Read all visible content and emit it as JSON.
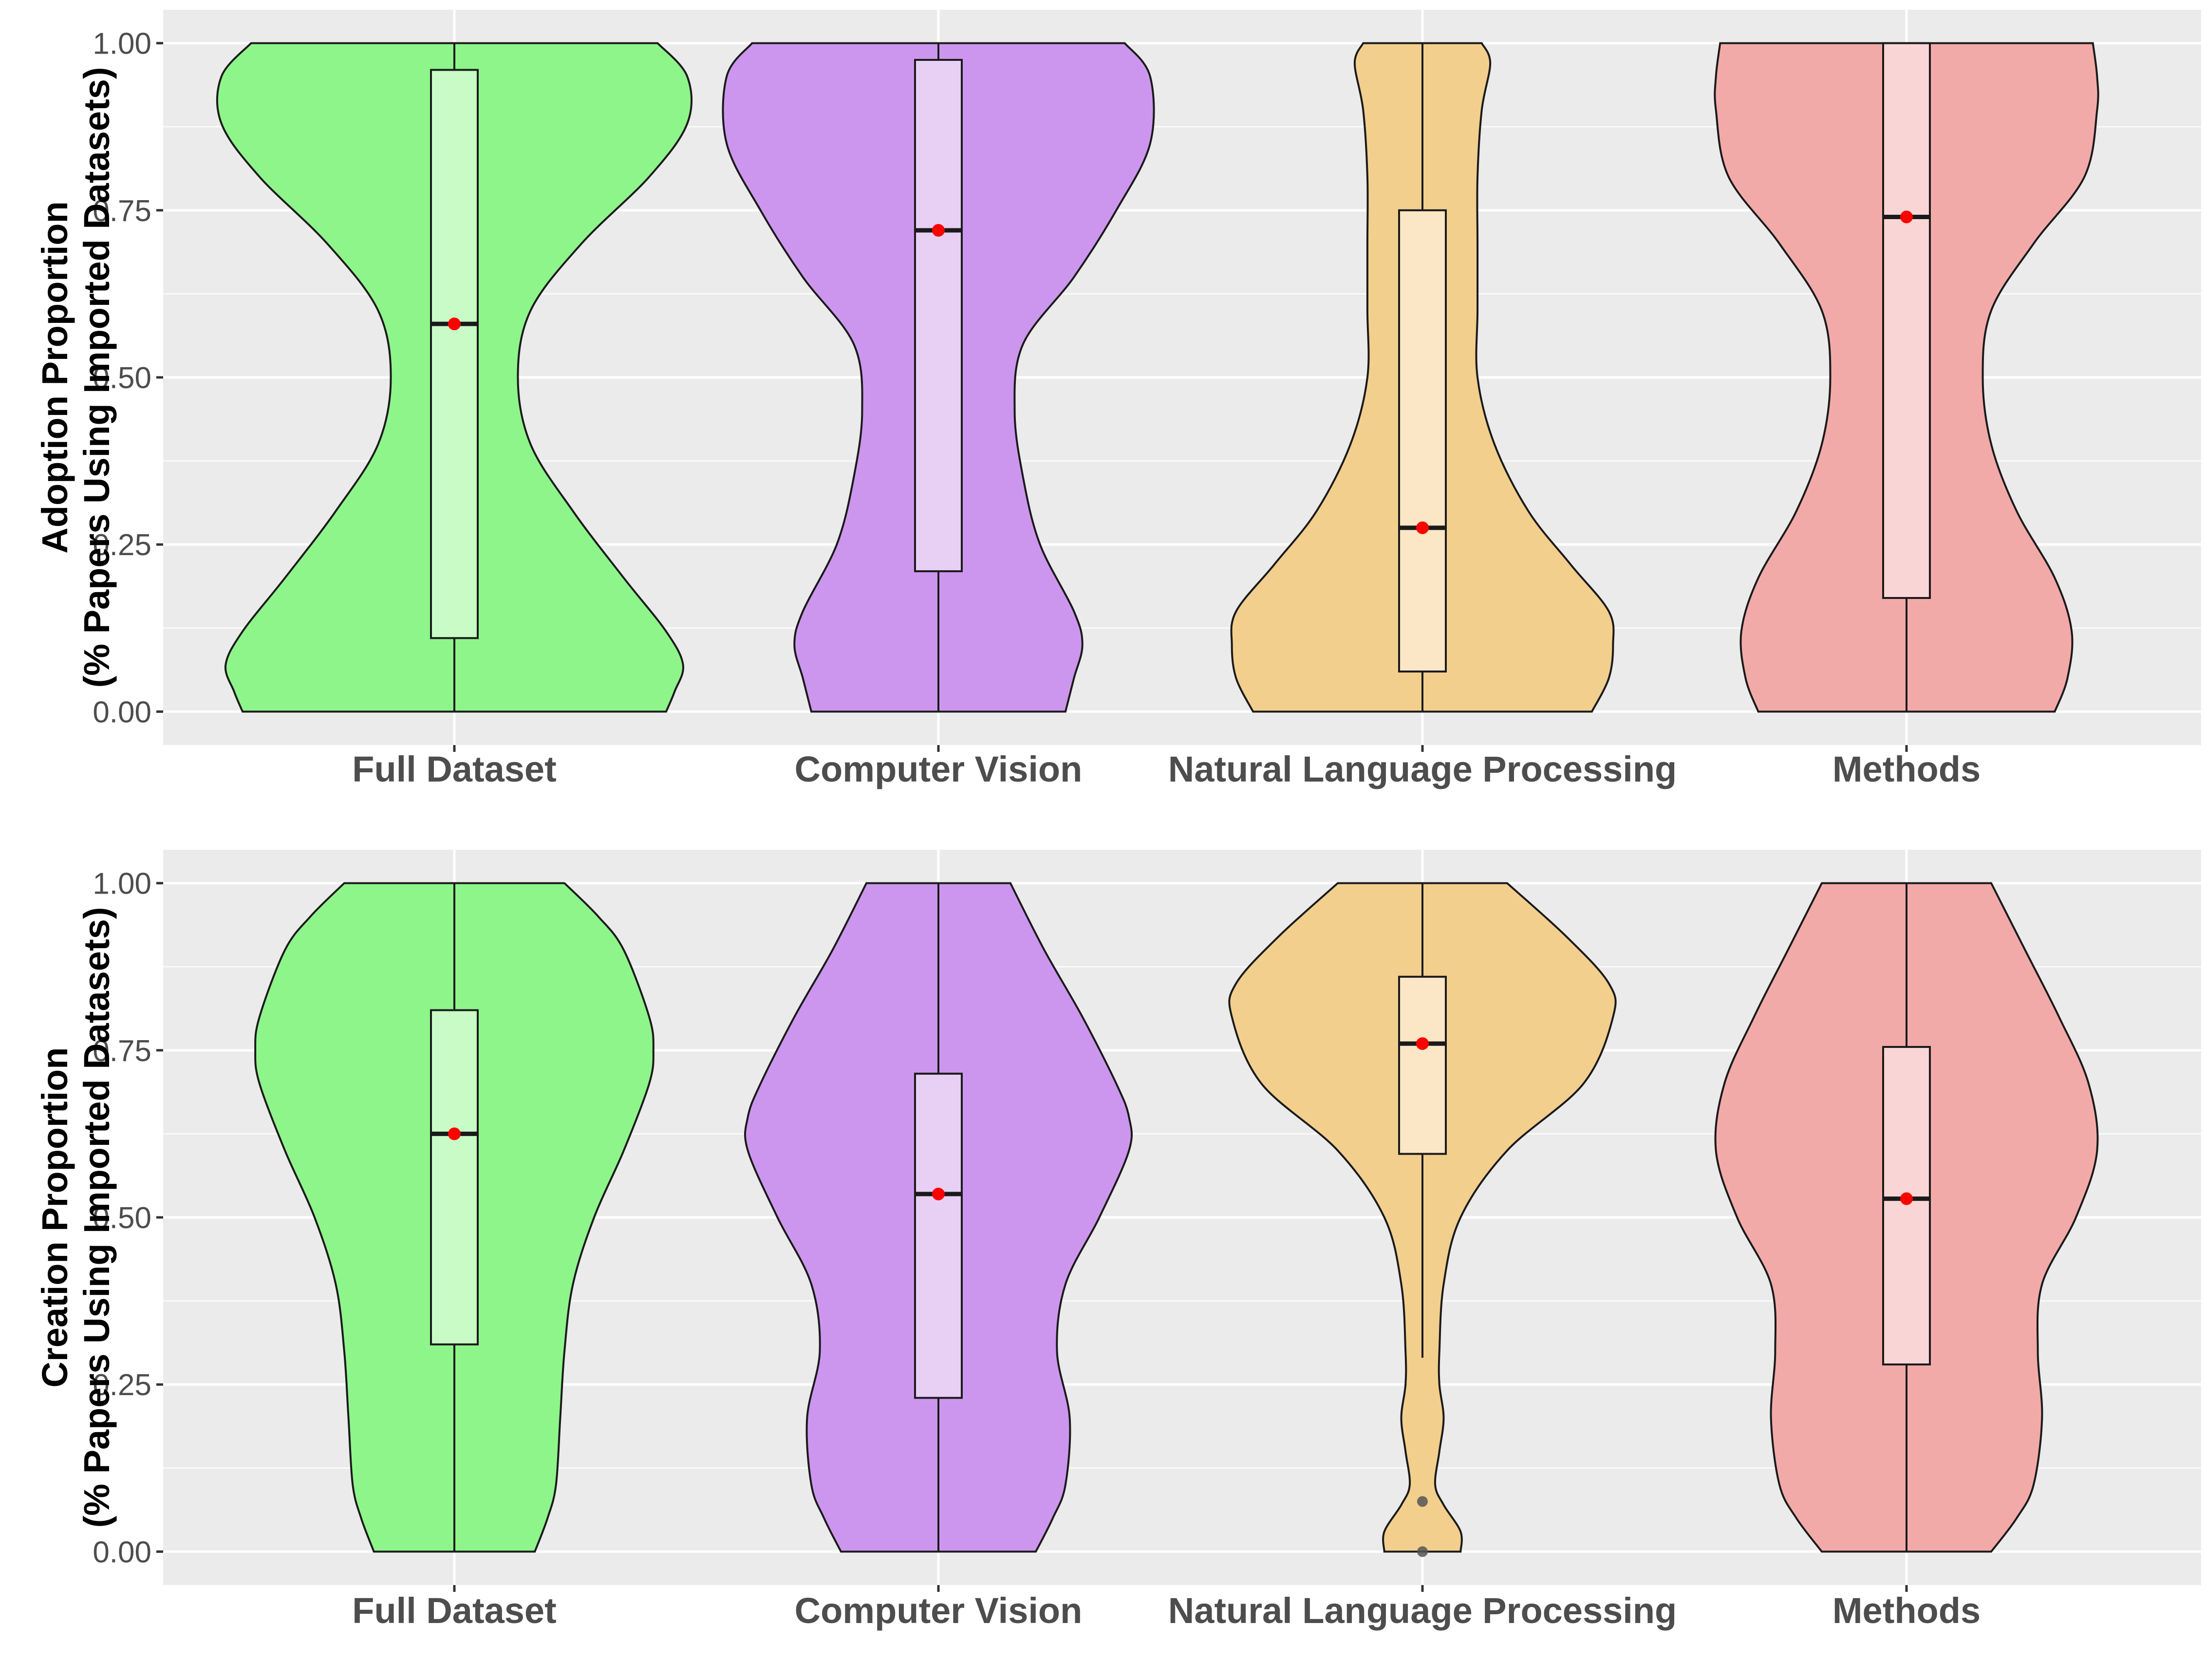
{
  "chart_data": [
    {
      "type": "violin",
      "ylabel_lines": [
        "Adoption Proportion",
        "(% Papers Using Imported Datasets)"
      ],
      "ylim": [
        -0.05,
        1.05
      ],
      "yticks": [
        0.0,
        0.25,
        0.5,
        0.75,
        1.0
      ],
      "ytick_labels": [
        "0.00",
        "0.25",
        "0.50",
        "0.75",
        "1.00"
      ],
      "categories": [
        "Full Dataset",
        "Computer Vision",
        "Natural Language Processing",
        "Methods"
      ],
      "series": [
        {
          "category": "Full Dataset",
          "color": "#8ef58a",
          "box_color": "#c9fbc6",
          "box": {
            "q1": 0.11,
            "median": 0.58,
            "q3": 0.96,
            "whisker_low": 0.0,
            "whisker_high": 1.0
          },
          "mean": 0.58,
          "outliers": [],
          "density": [
            [
              0.0,
              0.5
            ],
            [
              0.03,
              0.52
            ],
            [
              0.07,
              0.54
            ],
            [
              0.12,
              0.5
            ],
            [
              0.2,
              0.4
            ],
            [
              0.3,
              0.28
            ],
            [
              0.4,
              0.18
            ],
            [
              0.5,
              0.15
            ],
            [
              0.6,
              0.18
            ],
            [
              0.7,
              0.3
            ],
            [
              0.8,
              0.46
            ],
            [
              0.88,
              0.55
            ],
            [
              0.95,
              0.55
            ],
            [
              1.0,
              0.48
            ]
          ]
        },
        {
          "category": "Computer Vision",
          "color": "#cd96ee",
          "box_color": "#e8cff4",
          "box": {
            "q1": 0.21,
            "median": 0.72,
            "q3": 0.975,
            "whisker_low": 0.0,
            "whisker_high": 1.0
          },
          "mean": 0.72,
          "outliers": [],
          "density": [
            [
              0.0,
              0.3
            ],
            [
              0.05,
              0.32
            ],
            [
              0.1,
              0.34
            ],
            [
              0.15,
              0.32
            ],
            [
              0.25,
              0.24
            ],
            [
              0.35,
              0.2
            ],
            [
              0.45,
              0.18
            ],
            [
              0.55,
              0.2
            ],
            [
              0.65,
              0.32
            ],
            [
              0.75,
              0.42
            ],
            [
              0.85,
              0.5
            ],
            [
              0.95,
              0.5
            ],
            [
              1.0,
              0.44
            ]
          ]
        },
        {
          "category": "Natural Language Processing",
          "color": "#f3cf8d",
          "box_color": "#fbe6c6",
          "box": {
            "q1": 0.06,
            "median": 0.275,
            "q3": 0.75,
            "whisker_low": 0.0,
            "whisker_high": 1.0
          },
          "mean": 0.275,
          "outliers": [],
          "density": [
            [
              0.0,
              0.4
            ],
            [
              0.05,
              0.44
            ],
            [
              0.1,
              0.45
            ],
            [
              0.15,
              0.44
            ],
            [
              0.22,
              0.35
            ],
            [
              0.3,
              0.25
            ],
            [
              0.4,
              0.17
            ],
            [
              0.5,
              0.13
            ],
            [
              0.6,
              0.13
            ],
            [
              0.7,
              0.13
            ],
            [
              0.8,
              0.13
            ],
            [
              0.9,
              0.14
            ],
            [
              0.97,
              0.16
            ],
            [
              1.0,
              0.14
            ]
          ]
        },
        {
          "category": "Methods",
          "color": "#f2aaa9",
          "box_color": "#f9d6d5",
          "box": {
            "q1": 0.17,
            "median": 0.74,
            "q3": 1.0,
            "whisker_low": 0.0,
            "whisker_high": 1.0
          },
          "mean": 0.74,
          "outliers": [],
          "density": [
            [
              0.0,
              0.35
            ],
            [
              0.05,
              0.38
            ],
            [
              0.12,
              0.39
            ],
            [
              0.2,
              0.35
            ],
            [
              0.3,
              0.26
            ],
            [
              0.4,
              0.2
            ],
            [
              0.5,
              0.18
            ],
            [
              0.6,
              0.2
            ],
            [
              0.7,
              0.3
            ],
            [
              0.8,
              0.42
            ],
            [
              0.9,
              0.45
            ],
            [
              0.95,
              0.45
            ],
            [
              1.0,
              0.44
            ]
          ]
        }
      ]
    },
    {
      "type": "violin",
      "ylabel_lines": [
        "Creation Proportion",
        "(% Papers Using Imported Datasets)"
      ],
      "ylim": [
        -0.05,
        1.05
      ],
      "yticks": [
        0.0,
        0.25,
        0.5,
        0.75,
        1.0
      ],
      "ytick_labels": [
        "0.00",
        "0.25",
        "0.50",
        "0.75",
        "1.00"
      ],
      "categories": [
        "Full Dataset",
        "Computer Vision",
        "Natural Language Processing",
        "Methods"
      ],
      "series": [
        {
          "category": "Full Dataset",
          "color": "#8ef58a",
          "box_color": "#c9fbc6",
          "box": {
            "q1": 0.31,
            "median": 0.625,
            "q3": 0.81,
            "whisker_low": 0.0,
            "whisker_high": 1.0
          },
          "mean": 0.625,
          "outliers": [],
          "density": [
            [
              0.0,
              0.19
            ],
            [
              0.05,
              0.22
            ],
            [
              0.1,
              0.24
            ],
            [
              0.2,
              0.25
            ],
            [
              0.3,
              0.26
            ],
            [
              0.4,
              0.28
            ],
            [
              0.5,
              0.33
            ],
            [
              0.6,
              0.4
            ],
            [
              0.7,
              0.46
            ],
            [
              0.75,
              0.47
            ],
            [
              0.8,
              0.46
            ],
            [
              0.9,
              0.4
            ],
            [
              0.95,
              0.34
            ],
            [
              1.0,
              0.26
            ]
          ]
        },
        {
          "category": "Computer Vision",
          "color": "#cd96ee",
          "box_color": "#e8cff4",
          "box": {
            "q1": 0.23,
            "median": 0.535,
            "q3": 0.715,
            "whisker_low": 0.0,
            "whisker_high": 1.0
          },
          "mean": 0.535,
          "outliers": [],
          "density": [
            [
              0.0,
              0.23
            ],
            [
              0.05,
              0.27
            ],
            [
              0.1,
              0.3
            ],
            [
              0.2,
              0.31
            ],
            [
              0.3,
              0.28
            ],
            [
              0.4,
              0.3
            ],
            [
              0.5,
              0.38
            ],
            [
              0.6,
              0.45
            ],
            [
              0.65,
              0.45
            ],
            [
              0.7,
              0.42
            ],
            [
              0.8,
              0.34
            ],
            [
              0.9,
              0.25
            ],
            [
              1.0,
              0.17
            ]
          ]
        },
        {
          "category": "Natural Language Processing",
          "color": "#f3cf8d",
          "box_color": "#fbe6c6",
          "box": {
            "q1": 0.595,
            "median": 0.76,
            "q3": 0.86,
            "whisker_low": 0.29,
            "whisker_high": 1.0
          },
          "mean": 0.76,
          "outliers": [
            0.075,
            0.0
          ],
          "density": [
            [
              0.0,
              0.09
            ],
            [
              0.03,
              0.09
            ],
            [
              0.07,
              0.05
            ],
            [
              0.1,
              0.03
            ],
            [
              0.15,
              0.04
            ],
            [
              0.2,
              0.05
            ],
            [
              0.25,
              0.04
            ],
            [
              0.3,
              0.04
            ],
            [
              0.4,
              0.05
            ],
            [
              0.5,
              0.09
            ],
            [
              0.6,
              0.2
            ],
            [
              0.7,
              0.38
            ],
            [
              0.8,
              0.45
            ],
            [
              0.85,
              0.44
            ],
            [
              0.92,
              0.34
            ],
            [
              1.0,
              0.2
            ]
          ]
        },
        {
          "category": "Methods",
          "color": "#f2aaa9",
          "box_color": "#f9d6d5",
          "box": {
            "q1": 0.28,
            "median": 0.528,
            "q3": 0.755,
            "whisker_low": 0.0,
            "whisker_high": 1.0
          },
          "mean": 0.528,
          "outliers": [],
          "density": [
            [
              0.0,
              0.2
            ],
            [
              0.05,
              0.26
            ],
            [
              0.1,
              0.3
            ],
            [
              0.2,
              0.32
            ],
            [
              0.3,
              0.31
            ],
            [
              0.4,
              0.32
            ],
            [
              0.5,
              0.4
            ],
            [
              0.6,
              0.45
            ],
            [
              0.7,
              0.43
            ],
            [
              0.8,
              0.36
            ],
            [
              0.9,
              0.28
            ],
            [
              1.0,
              0.2
            ]
          ]
        }
      ]
    }
  ]
}
